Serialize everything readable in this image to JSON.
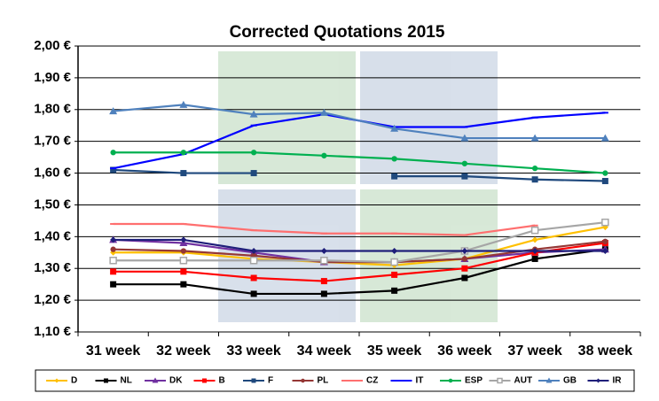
{
  "chart_data": {
    "type": "line",
    "title": "Corrected Quotations 2015",
    "categories": [
      "31 week",
      "32 week",
      "33 week",
      "34 week",
      "35 week",
      "36 week",
      "37 week",
      "38 week"
    ],
    "ylim": [
      1.1,
      2.0
    ],
    "yticks": [
      {
        "value": 1.1,
        "label": "1,10 €"
      },
      {
        "value": 1.2,
        "label": "1,20 €"
      },
      {
        "value": 1.3,
        "label": "1,30 €"
      },
      {
        "value": 1.4,
        "label": "1,40 €"
      },
      {
        "value": 1.5,
        "label": "1,50 €"
      },
      {
        "value": 1.6,
        "label": "1,60 €"
      },
      {
        "value": 1.7,
        "label": "1,70 €"
      },
      {
        "value": 1.8,
        "label": "1,80 €"
      },
      {
        "value": 1.9,
        "label": "1,90 €"
      },
      {
        "value": 2.0,
        "label": "2,00 €"
      }
    ],
    "grid": true,
    "legend": "bottom",
    "series": [
      {
        "name": "D",
        "color": "#FFC000",
        "marker": "diamond",
        "values": [
          1.35,
          1.35,
          1.33,
          1.32,
          1.31,
          1.33,
          1.39,
          1.43
        ]
      },
      {
        "name": "NL",
        "color": "#000000",
        "marker": "square",
        "values": [
          1.25,
          1.25,
          1.22,
          1.22,
          1.23,
          1.27,
          1.33,
          1.36
        ]
      },
      {
        "name": "DK",
        "color": "#7030A0",
        "marker": "triangle",
        "values": [
          1.39,
          1.38,
          1.35,
          1.32,
          1.32,
          1.33,
          1.35,
          1.36
        ]
      },
      {
        "name": "B",
        "color": "#FF0000",
        "marker": "square",
        "values": [
          1.29,
          1.29,
          1.27,
          1.26,
          1.28,
          1.3,
          1.35,
          1.38
        ]
      },
      {
        "name": "F",
        "color": "#1F497D",
        "marker": "square",
        "values": [
          1.61,
          1.6,
          1.6,
          null,
          1.59,
          1.59,
          1.58,
          1.575
        ]
      },
      {
        "name": "PL",
        "color": "#953735",
        "marker": "circle",
        "values": [
          1.36,
          1.355,
          1.34,
          1.32,
          1.32,
          1.33,
          1.36,
          1.385
        ]
      },
      {
        "name": "CZ",
        "color": "#FF6F6F",
        "marker": "dash",
        "values": [
          1.44,
          1.44,
          1.42,
          1.41,
          1.41,
          1.405,
          1.435,
          null
        ]
      },
      {
        "name": "IT",
        "color": "#0000FF",
        "marker": "dash",
        "values": [
          1.615,
          1.66,
          1.75,
          1.785,
          1.745,
          1.745,
          1.775,
          1.79
        ]
      },
      {
        "name": "ESP",
        "color": "#00B050",
        "marker": "circle",
        "values": [
          1.665,
          1.665,
          1.665,
          1.655,
          1.645,
          1.63,
          1.615,
          1.6
        ]
      },
      {
        "name": "AUT",
        "color": "#A6A6A6",
        "marker": "opensquare",
        "values": [
          1.325,
          1.325,
          1.325,
          1.325,
          1.32,
          1.355,
          1.42,
          1.445
        ]
      },
      {
        "name": "GB",
        "color": "#4F81BD",
        "marker": "triangle",
        "values": [
          1.795,
          1.815,
          1.785,
          1.79,
          1.74,
          1.71,
          1.71,
          1.71
        ]
      },
      {
        "name": "IR",
        "color": "#1F1F7A",
        "marker": "diamond",
        "values": [
          1.39,
          1.39,
          1.355,
          1.355,
          1.355,
          1.355,
          1.355,
          1.355
        ]
      }
    ]
  }
}
